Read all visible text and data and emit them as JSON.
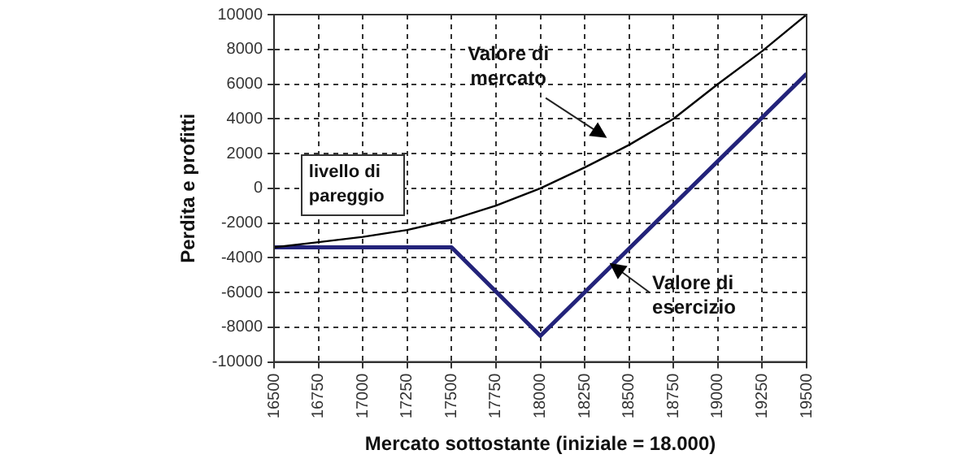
{
  "chart_data": {
    "type": "line",
    "xlabel": "Mercato sottostante (iniziale = 18.000)",
    "ylabel": "Perdita e profitti",
    "xlim": [
      16500,
      19500
    ],
    "xticks": [
      16500,
      16750,
      17000,
      17250,
      17500,
      17750,
      18000,
      18250,
      18500,
      18750,
      19000,
      19250,
      19500
    ],
    "ylim": [
      -10000,
      10000
    ],
    "yticks": [
      -10000,
      -8000,
      -6000,
      -4000,
      -2000,
      0,
      2000,
      4000,
      6000,
      8000,
      10000
    ],
    "grid": true,
    "legend": false,
    "marker": "none",
    "line_style": "solid",
    "series": [
      {
        "color": "#000000",
        "x": [
          16500,
          16750,
          17000,
          17250,
          17500,
          17750,
          18000,
          18250,
          18500,
          18750,
          19000,
          19250,
          19500
        ],
        "values": [
          -3400,
          -3100,
          -2800,
          -2400,
          -1800,
          -1000,
          0,
          1200,
          2500,
          4000,
          6000,
          7900,
          10000
        ]
      },
      {
        "color": "#23237a",
        "x": [
          16500,
          17500,
          18000,
          19500
        ],
        "values": [
          -3400,
          -3400,
          -8500,
          6600
        ]
      }
    ],
    "annotations": [
      "Valore di mercato",
      "Valore di esercizio",
      "livello di pareggio"
    ]
  }
}
